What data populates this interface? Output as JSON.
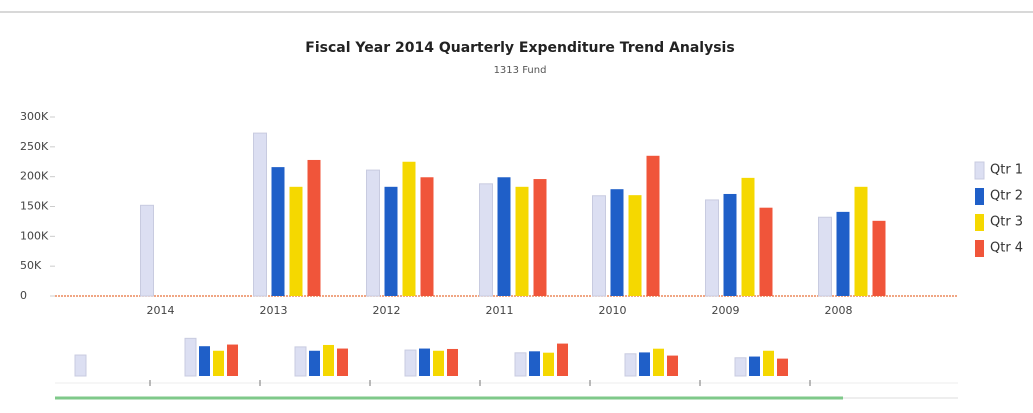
{
  "chart_data": {
    "type": "bar",
    "title": "Fiscal Year 2014 Quarterly Expenditure Trend Analysis",
    "subtitle": "1313 Fund",
    "categories": [
      "2014",
      "2013",
      "2012",
      "2011",
      "2010",
      "2009",
      "2008"
    ],
    "series": [
      {
        "name": "Qtr 1",
        "color": "#dcdff2",
        "values": [
          152000,
          273000,
          211000,
          188000,
          168000,
          161000,
          132000
        ]
      },
      {
        "name": "Qtr 2",
        "color": "#1f5fc8",
        "values": [
          null,
          216000,
          183000,
          199000,
          179000,
          171000,
          141000
        ]
      },
      {
        "name": "Qtr 3",
        "color": "#f5d800",
        "values": [
          null,
          183000,
          225000,
          183000,
          169000,
          198000,
          183000
        ]
      },
      {
        "name": "Qtr 4",
        "color": "#f0553a",
        "values": [
          null,
          228000,
          199000,
          196000,
          235000,
          148000,
          126000
        ]
      }
    ],
    "ylim": [
      0,
      300000
    ],
    "yticks": [
      {
        "value": 0,
        "label": "0"
      },
      {
        "value": 50000,
        "label": "50K"
      },
      {
        "value": 100000,
        "label": "100K"
      },
      {
        "value": 150000,
        "label": "150K"
      },
      {
        "value": 200000,
        "label": "200K"
      },
      {
        "value": 250000,
        "label": "250K"
      },
      {
        "value": 300000,
        "label": "300K"
      }
    ],
    "legend": "right"
  }
}
